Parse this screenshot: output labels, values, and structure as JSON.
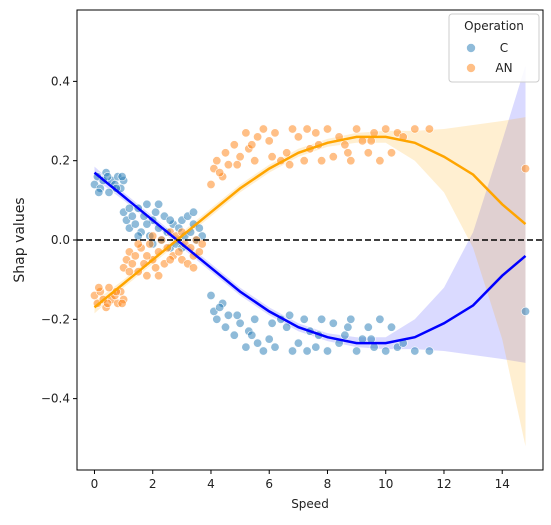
{
  "chart_data": {
    "type": "scatter",
    "title": "",
    "xlabel": "Speed",
    "ylabel": "Shap values",
    "xlim": [
      -0.6,
      15.4
    ],
    "ylim": [
      -0.58,
      0.58
    ],
    "xticks": [
      0,
      2,
      4,
      6,
      8,
      10,
      12,
      14
    ],
    "yticks": [
      -0.4,
      -0.2,
      0.0,
      0.2,
      0.4
    ],
    "xtick_labels": [
      "0",
      "2",
      "4",
      "6",
      "8",
      "10",
      "12",
      "14"
    ],
    "ytick_labels": [
      "−0.4",
      "−0.2",
      "0.0",
      "0.2",
      "0.4"
    ],
    "grid": false,
    "reference_line": {
      "y": 0.0,
      "style": "dashed",
      "color": "#000000"
    },
    "legend": {
      "title": "Operation",
      "placement": "top-right"
    },
    "series": [
      {
        "name": "C",
        "color": "#1f77b4",
        "fit_color": "#0000ff",
        "points": [
          [
            0,
            0.14
          ],
          [
            0.1,
            0.16
          ],
          [
            0.2,
            0.13
          ],
          [
            0.3,
            0.15
          ],
          [
            0.4,
            0.17
          ],
          [
            0.5,
            0.12
          ],
          [
            0.6,
            0.15
          ],
          [
            0.7,
            0.14
          ],
          [
            0.8,
            0.16
          ],
          [
            0.9,
            0.13
          ],
          [
            1.0,
            0.15
          ],
          [
            0.15,
            0.12
          ],
          [
            0.45,
            0.16
          ],
          [
            0.75,
            0.13
          ],
          [
            0.95,
            0.16
          ],
          [
            1.0,
            0.07
          ],
          [
            1.1,
            0.05
          ],
          [
            1.2,
            0.03
          ],
          [
            1.3,
            0.06
          ],
          [
            1.4,
            0.04
          ],
          [
            1.5,
            0.08
          ],
          [
            1.6,
            0.02
          ],
          [
            1.7,
            0.06
          ],
          [
            1.8,
            0.09
          ],
          [
            1.9,
            0.01
          ],
          [
            2.0,
            0.05
          ],
          [
            2.1,
            0.07
          ],
          [
            2.2,
            0.03
          ],
          [
            2.3,
            0.0
          ],
          [
            2.4,
            0.06
          ],
          [
            2.5,
            0.02
          ],
          [
            2.6,
            -0.02
          ],
          [
            2.7,
            0.04
          ],
          [
            2.8,
            -0.01
          ],
          [
            2.9,
            0.03
          ],
          [
            3.0,
            0.05
          ],
          [
            3.1,
            0.01
          ],
          [
            3.2,
            0.06
          ],
          [
            3.3,
            0.02
          ],
          [
            3.4,
            0.04
          ],
          [
            3.5,
            0.0
          ],
          [
            3.6,
            0.03
          ],
          [
            3.7,
            0.01
          ],
          [
            1.2,
            0.08
          ],
          [
            1.8,
            0.04
          ],
          [
            2.2,
            0.09
          ],
          [
            2.6,
            0.05
          ],
          [
            3.0,
            -0.02
          ],
          [
            3.4,
            0.07
          ],
          [
            1.5,
            0.01
          ],
          [
            2.0,
            -0.01
          ],
          [
            4.0,
            -0.14
          ],
          [
            4.1,
            -0.18
          ],
          [
            4.2,
            -0.2
          ],
          [
            4.4,
            -0.16
          ],
          [
            4.5,
            -0.22
          ],
          [
            4.6,
            -0.19
          ],
          [
            4.8,
            -0.24
          ],
          [
            5.0,
            -0.21
          ],
          [
            5.2,
            -0.27
          ],
          [
            5.3,
            -0.23
          ],
          [
            5.5,
            -0.2
          ],
          [
            5.6,
            -0.26
          ],
          [
            5.8,
            -0.28
          ],
          [
            6.0,
            -0.25
          ],
          [
            6.2,
            -0.27
          ],
          [
            6.4,
            -0.2
          ],
          [
            6.6,
            -0.22
          ],
          [
            6.8,
            -0.28
          ],
          [
            7.0,
            -0.26
          ],
          [
            7.2,
            -0.2
          ],
          [
            7.4,
            -0.23
          ],
          [
            7.6,
            -0.27
          ],
          [
            7.8,
            -0.2
          ],
          [
            8.0,
            -0.28
          ],
          [
            8.2,
            -0.21
          ],
          [
            8.4,
            -0.26
          ],
          [
            8.6,
            -0.24
          ],
          [
            8.8,
            -0.2
          ],
          [
            9.0,
            -0.28
          ],
          [
            9.2,
            -0.25
          ],
          [
            9.4,
            -0.22
          ],
          [
            9.6,
            -0.27
          ],
          [
            9.8,
            -0.2
          ],
          [
            10.0,
            -0.28
          ],
          [
            10.2,
            -0.22
          ],
          [
            10.4,
            -0.27
          ],
          [
            10.6,
            -0.26
          ],
          [
            11.0,
            -0.28
          ],
          [
            11.5,
            -0.28
          ],
          [
            14.8,
            -0.18
          ],
          [
            4.3,
            -0.17
          ],
          [
            4.9,
            -0.19
          ],
          [
            5.4,
            -0.24
          ],
          [
            6.1,
            -0.21
          ],
          [
            7.3,
            -0.28
          ],
          [
            8.7,
            -0.22
          ],
          [
            9.5,
            -0.25
          ],
          [
            7.7,
            -0.24
          ],
          [
            6.7,
            -0.19
          ]
        ],
        "fit_x": [
          0,
          1,
          2,
          3,
          4,
          5,
          6,
          7,
          8,
          9,
          10,
          11,
          12,
          13,
          14,
          14.8
        ],
        "fit_y": [
          0.17,
          0.11,
          0.05,
          -0.01,
          -0.07,
          -0.13,
          -0.18,
          -0.22,
          -0.245,
          -0.26,
          -0.26,
          -0.245,
          -0.21,
          -0.165,
          -0.09,
          -0.04
        ],
        "ci_lower": [
          0.155,
          0.1,
          0.04,
          -0.02,
          -0.08,
          -0.14,
          -0.19,
          -0.23,
          -0.255,
          -0.27,
          -0.275,
          -0.275,
          -0.28,
          -0.29,
          -0.3,
          -0.31
        ],
        "ci_upper": [
          0.185,
          0.12,
          0.06,
          0.0,
          -0.06,
          -0.12,
          -0.17,
          -0.21,
          -0.235,
          -0.245,
          -0.245,
          -0.2,
          -0.12,
          0.02,
          0.25,
          0.44
        ]
      },
      {
        "name": "AN",
        "color": "#ff7f0e",
        "fit_color": "#ffa500",
        "points": [
          [
            0,
            -0.14
          ],
          [
            0.1,
            -0.16
          ],
          [
            0.2,
            -0.13
          ],
          [
            0.3,
            -0.15
          ],
          [
            0.4,
            -0.17
          ],
          [
            0.5,
            -0.12
          ],
          [
            0.6,
            -0.15
          ],
          [
            0.7,
            -0.14
          ],
          [
            0.8,
            -0.16
          ],
          [
            0.9,
            -0.13
          ],
          [
            1.0,
            -0.15
          ],
          [
            0.15,
            -0.12
          ],
          [
            0.45,
            -0.16
          ],
          [
            0.75,
            -0.13
          ],
          [
            0.95,
            -0.16
          ],
          [
            1.0,
            -0.07
          ],
          [
            1.1,
            -0.05
          ],
          [
            1.2,
            -0.03
          ],
          [
            1.3,
            -0.06
          ],
          [
            1.4,
            -0.04
          ],
          [
            1.5,
            -0.08
          ],
          [
            1.6,
            -0.02
          ],
          [
            1.7,
            -0.06
          ],
          [
            1.8,
            -0.09
          ],
          [
            1.9,
            -0.01
          ],
          [
            2.0,
            -0.05
          ],
          [
            2.1,
            -0.07
          ],
          [
            2.2,
            -0.03
          ],
          [
            2.3,
            0.0
          ],
          [
            2.4,
            -0.06
          ],
          [
            2.5,
            -0.02
          ],
          [
            2.6,
            0.02
          ],
          [
            2.7,
            -0.04
          ],
          [
            2.8,
            0.01
          ],
          [
            2.9,
            -0.03
          ],
          [
            3.0,
            -0.05
          ],
          [
            3.1,
            -0.01
          ],
          [
            3.2,
            -0.06
          ],
          [
            3.3,
            -0.02
          ],
          [
            3.4,
            -0.04
          ],
          [
            3.5,
            0.0
          ],
          [
            3.6,
            -0.03
          ],
          [
            3.7,
            -0.01
          ],
          [
            1.2,
            -0.08
          ],
          [
            1.8,
            -0.04
          ],
          [
            2.2,
            -0.09
          ],
          [
            2.6,
            -0.05
          ],
          [
            3.0,
            0.02
          ],
          [
            3.4,
            -0.07
          ],
          [
            1.5,
            -0.01
          ],
          [
            2.0,
            0.01
          ],
          [
            4.0,
            0.14
          ],
          [
            4.1,
            0.18
          ],
          [
            4.2,
            0.2
          ],
          [
            4.4,
            0.16
          ],
          [
            4.5,
            0.22
          ],
          [
            4.6,
            0.19
          ],
          [
            4.8,
            0.24
          ],
          [
            5.0,
            0.21
          ],
          [
            5.2,
            0.27
          ],
          [
            5.3,
            0.23
          ],
          [
            5.5,
            0.2
          ],
          [
            5.6,
            0.26
          ],
          [
            5.8,
            0.28
          ],
          [
            6.0,
            0.25
          ],
          [
            6.2,
            0.27
          ],
          [
            6.4,
            0.2
          ],
          [
            6.6,
            0.22
          ],
          [
            6.8,
            0.28
          ],
          [
            7.0,
            0.26
          ],
          [
            7.2,
            0.2
          ],
          [
            7.4,
            0.23
          ],
          [
            7.6,
            0.27
          ],
          [
            7.8,
            0.2
          ],
          [
            8.0,
            0.28
          ],
          [
            8.2,
            0.21
          ],
          [
            8.4,
            0.26
          ],
          [
            8.6,
            0.24
          ],
          [
            8.8,
            0.2
          ],
          [
            9.0,
            0.28
          ],
          [
            9.2,
            0.25
          ],
          [
            9.4,
            0.22
          ],
          [
            9.6,
            0.27
          ],
          [
            9.8,
            0.2
          ],
          [
            10.0,
            0.28
          ],
          [
            10.2,
            0.22
          ],
          [
            10.4,
            0.27
          ],
          [
            10.6,
            0.26
          ],
          [
            11.0,
            0.28
          ],
          [
            11.5,
            0.28
          ],
          [
            14.8,
            0.18
          ],
          [
            4.3,
            0.17
          ],
          [
            4.9,
            0.19
          ],
          [
            5.4,
            0.24
          ],
          [
            6.1,
            0.21
          ],
          [
            7.3,
            0.28
          ],
          [
            8.7,
            0.22
          ],
          [
            9.5,
            0.25
          ],
          [
            7.7,
            0.24
          ],
          [
            6.7,
            0.19
          ]
        ],
        "fit_x": [
          0,
          1,
          2,
          3,
          4,
          5,
          6,
          7,
          8,
          9,
          10,
          11,
          12,
          13,
          14,
          14.8
        ],
        "fit_y": [
          -0.17,
          -0.11,
          -0.05,
          0.01,
          0.07,
          0.13,
          0.18,
          0.22,
          0.245,
          0.26,
          0.26,
          0.245,
          0.21,
          0.165,
          0.09,
          0.04
        ],
        "ci_lower": [
          -0.185,
          -0.12,
          -0.06,
          0.0,
          0.06,
          0.12,
          0.17,
          0.21,
          0.235,
          0.245,
          0.245,
          0.2,
          0.12,
          -0.02,
          -0.25,
          -0.52
        ],
        "ci_upper": [
          -0.155,
          -0.1,
          -0.04,
          0.02,
          0.08,
          0.14,
          0.19,
          0.23,
          0.255,
          0.27,
          0.275,
          0.275,
          0.28,
          0.29,
          0.3,
          0.31
        ]
      }
    ]
  }
}
